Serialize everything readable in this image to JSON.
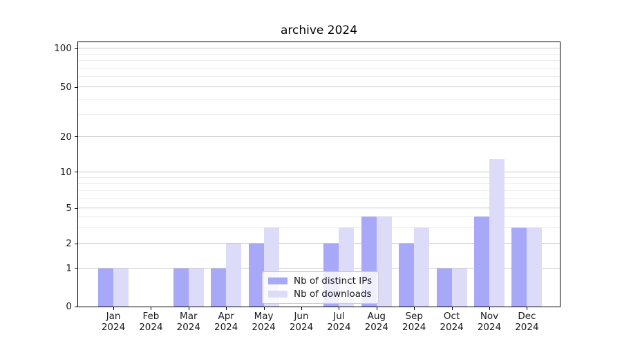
{
  "title": "archive 2024",
  "chart_data": {
    "type": "bar",
    "title": "archive 2024",
    "categories": [
      "Jan 2024",
      "Feb 2024",
      "Mar 2024",
      "Apr 2024",
      "May 2024",
      "Jun 2024",
      "Jul 2024",
      "Aug 2024",
      "Sep 2024",
      "Oct 2024",
      "Nov 2024",
      "Dec 2024"
    ],
    "x_tick_months": [
      "Jan",
      "Feb",
      "Mar",
      "Apr",
      "May",
      "Jun",
      "Jul",
      "Aug",
      "Sep",
      "Oct",
      "Nov",
      "Dec"
    ],
    "x_tick_year": "2024",
    "series": [
      {
        "name": "Nb of distinct IPs",
        "color": "#a8a8f8",
        "values": [
          1,
          0,
          1,
          1,
          2,
          0,
          2,
          4,
          2,
          1,
          4,
          3
        ]
      },
      {
        "name": "Nb of downloads",
        "color": "#dcdcf9",
        "values": [
          1,
          0,
          1,
          2,
          3,
          0,
          3,
          4,
          3,
          1,
          13,
          3
        ]
      }
    ],
    "xlabel": "",
    "ylabel": "",
    "yscale": "symlog",
    "ytick_values": [
      0,
      1,
      2,
      5,
      10,
      20,
      50,
      100
    ],
    "ytick_labels": [
      "0",
      "1",
      "2",
      "5",
      "10",
      "20",
      "50",
      "100"
    ],
    "minor_grid_values": [
      3,
      4,
      6,
      7,
      8,
      9,
      30,
      40,
      60,
      70,
      80,
      90
    ],
    "ylim": [
      0,
      115
    ],
    "grid": true,
    "legend_position": "lower center"
  },
  "colors": {
    "background": "#ffffff",
    "axis": "#000000",
    "major_grid": "#c9c9c9",
    "minor_grid": "#ededed",
    "legend_border": "#cccccc",
    "text": "#1a1a1a"
  }
}
